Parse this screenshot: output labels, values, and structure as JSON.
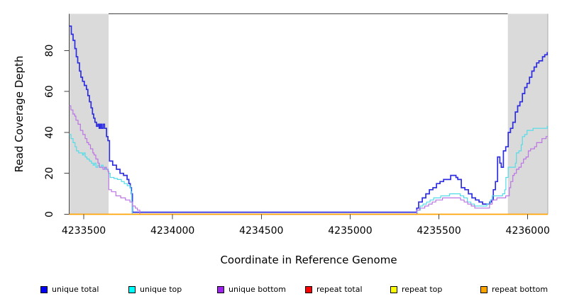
{
  "chart_data": {
    "type": "line",
    "subtype": "step",
    "title": "",
    "xlabel": "Coordinate in Reference Genome",
    "ylabel": "Read Coverage Depth",
    "xlim": [
      4233418,
      4236113
    ],
    "ylim": [
      0,
      98
    ],
    "x_ticks": [
      4233500,
      4234000,
      4234500,
      4235000,
      4235500,
      4236000
    ],
    "y_ticks": [
      0,
      20,
      40,
      60,
      80
    ],
    "grid": false,
    "legend_position": "bottom",
    "background": "#ffffff",
    "frame_color": "#434343",
    "shaded_region_color": "#dadada",
    "shaded_regions": [
      {
        "name": "left-flank",
        "from": 4233418,
        "to": 4233640
      },
      {
        "name": "right-flank",
        "from": 4235888,
        "to": 4236113
      }
    ],
    "series": [
      {
        "name": "unique total",
        "legend_color": "#0000f2",
        "line_color": "#2e2ee0",
        "line_width": 1.7,
        "points": [
          [
            4233418,
            92
          ],
          [
            4233430,
            88
          ],
          [
            4233440,
            85
          ],
          [
            4233450,
            81
          ],
          [
            4233458,
            77
          ],
          [
            4233466,
            74
          ],
          [
            4233476,
            70
          ],
          [
            4233484,
            67
          ],
          [
            4233493,
            65
          ],
          [
            4233503,
            63
          ],
          [
            4233515,
            61
          ],
          [
            4233523,
            58
          ],
          [
            4233532,
            55
          ],
          [
            4233541,
            52
          ],
          [
            4233549,
            49
          ],
          [
            4233556,
            47
          ],
          [
            4233563,
            45
          ],
          [
            4233572,
            43
          ],
          [
            4233580,
            44
          ],
          [
            4233587,
            42
          ],
          [
            4233594,
            44
          ],
          [
            4233601,
            42
          ],
          [
            4233609,
            44
          ],
          [
            4233617,
            42
          ],
          [
            4233628,
            38
          ],
          [
            4233636,
            36
          ],
          [
            4233645,
            26
          ],
          [
            4233663,
            24
          ],
          [
            4233684,
            22
          ],
          [
            4233704,
            20
          ],
          [
            4233724,
            19
          ],
          [
            4233744,
            17
          ],
          [
            4233754,
            15
          ],
          [
            4233762,
            13
          ],
          [
            4233769,
            10
          ],
          [
            4233774,
            1
          ],
          [
            4235375,
            3
          ],
          [
            4235386,
            6
          ],
          [
            4235406,
            8
          ],
          [
            4235426,
            10
          ],
          [
            4235446,
            12
          ],
          [
            4235466,
            13
          ],
          [
            4235486,
            15
          ],
          [
            4235506,
            16
          ],
          [
            4235526,
            17
          ],
          [
            4235546,
            17
          ],
          [
            4235566,
            19
          ],
          [
            4235596,
            18
          ],
          [
            4235606,
            17
          ],
          [
            4235626,
            13
          ],
          [
            4235646,
            12
          ],
          [
            4235666,
            10
          ],
          [
            4235686,
            8
          ],
          [
            4235706,
            7
          ],
          [
            4235726,
            6
          ],
          [
            4235746,
            5
          ],
          [
            4235786,
            6
          ],
          [
            4235796,
            7
          ],
          [
            4235806,
            12
          ],
          [
            4235818,
            16
          ],
          [
            4235830,
            28
          ],
          [
            4235843,
            25
          ],
          [
            4235851,
            23
          ],
          [
            4235863,
            31
          ],
          [
            4235876,
            33
          ],
          [
            4235890,
            40
          ],
          [
            4235903,
            42
          ],
          [
            4235916,
            45
          ],
          [
            4235930,
            50
          ],
          [
            4235943,
            53
          ],
          [
            4235956,
            55
          ],
          [
            4235970,
            59
          ],
          [
            4235983,
            62
          ],
          [
            4235996,
            64
          ],
          [
            4236010,
            67
          ],
          [
            4236023,
            70
          ],
          [
            4236036,
            72
          ],
          [
            4236050,
            74
          ],
          [
            4236063,
            75
          ],
          [
            4236083,
            77
          ],
          [
            4236096,
            78
          ],
          [
            4236110,
            79
          ]
        ]
      },
      {
        "name": "unique top",
        "legend_color": "#00ffff",
        "line_color": "#53dce8",
        "line_width": 1.2,
        "points": [
          [
            4233418,
            39
          ],
          [
            4233428,
            37
          ],
          [
            4233440,
            35
          ],
          [
            4233451,
            33
          ],
          [
            4233459,
            31
          ],
          [
            4233471,
            30
          ],
          [
            4233493,
            29
          ],
          [
            4233500,
            30
          ],
          [
            4233508,
            28
          ],
          [
            4233518,
            27
          ],
          [
            4233532,
            26
          ],
          [
            4233543,
            25
          ],
          [
            4233553,
            24
          ],
          [
            4233561,
            25
          ],
          [
            4233569,
            23
          ],
          [
            4233579,
            24
          ],
          [
            4233589,
            23
          ],
          [
            4233599,
            24
          ],
          [
            4233609,
            23
          ],
          [
            4233622,
            22
          ],
          [
            4233639,
            20
          ],
          [
            4233649,
            18
          ],
          [
            4233670,
            17.5
          ],
          [
            4233690,
            17
          ],
          [
            4233712,
            16
          ],
          [
            4233728,
            15
          ],
          [
            4233745,
            14
          ],
          [
            4233760,
            13
          ],
          [
            4233766,
            11
          ],
          [
            4233770,
            6
          ],
          [
            4233773,
            0
          ],
          [
            4235378,
            2
          ],
          [
            4235395,
            4
          ],
          [
            4235410,
            5
          ],
          [
            4235430,
            6
          ],
          [
            4235450,
            7
          ],
          [
            4235470,
            8
          ],
          [
            4235510,
            9
          ],
          [
            4235560,
            10
          ],
          [
            4235620,
            9
          ],
          [
            4235640,
            8
          ],
          [
            4235660,
            6
          ],
          [
            4235680,
            5
          ],
          [
            4235700,
            4
          ],
          [
            4235770,
            5
          ],
          [
            4235790,
            7
          ],
          [
            4235800,
            9
          ],
          [
            4235858,
            10
          ],
          [
            4235871,
            12
          ],
          [
            4235877,
            18
          ],
          [
            4235890,
            23
          ],
          [
            4235930,
            25
          ],
          [
            4235936,
            30
          ],
          [
            4235950,
            31
          ],
          [
            4235963,
            34
          ],
          [
            4235970,
            38
          ],
          [
            4235983,
            39
          ],
          [
            4235996,
            41
          ],
          [
            4236030,
            42
          ],
          [
            4236110,
            43
          ]
        ]
      },
      {
        "name": "unique bottom",
        "legend_color": "#a020f0",
        "line_color": "#bb74e4",
        "line_width": 1.2,
        "points": [
          [
            4233418,
            53
          ],
          [
            4233427,
            51
          ],
          [
            4233439,
            49
          ],
          [
            4233449,
            48
          ],
          [
            4233456,
            46
          ],
          [
            4233468,
            44
          ],
          [
            4233481,
            41
          ],
          [
            4233495,
            39
          ],
          [
            4233508,
            37
          ],
          [
            4233518,
            35
          ],
          [
            4233528,
            34
          ],
          [
            4233538,
            32
          ],
          [
            4233551,
            30
          ],
          [
            4233558,
            29
          ],
          [
            4233568,
            27
          ],
          [
            4233580,
            25
          ],
          [
            4233588,
            23
          ],
          [
            4233599,
            23
          ],
          [
            4233608,
            22
          ],
          [
            4233618,
            23
          ],
          [
            4233628,
            22
          ],
          [
            4233636,
            21
          ],
          [
            4233641,
            12
          ],
          [
            4233656,
            11
          ],
          [
            4233681,
            9
          ],
          [
            4233708,
            8
          ],
          [
            4233735,
            7
          ],
          [
            4233760,
            6
          ],
          [
            4233775,
            4
          ],
          [
            4233790,
            3
          ],
          [
            4233802,
            2
          ],
          [
            4233816,
            0
          ],
          [
            4235375,
            2
          ],
          [
            4235392,
            3
          ],
          [
            4235420,
            4
          ],
          [
            4235442,
            5
          ],
          [
            4235462,
            6
          ],
          [
            4235482,
            7
          ],
          [
            4235520,
            8
          ],
          [
            4235600,
            8
          ],
          [
            4235622,
            7
          ],
          [
            4235642,
            6
          ],
          [
            4235662,
            5
          ],
          [
            4235682,
            4
          ],
          [
            4235702,
            3
          ],
          [
            4235785,
            5
          ],
          [
            4235800,
            7
          ],
          [
            4235826,
            8
          ],
          [
            4235876,
            9
          ],
          [
            4235896,
            13
          ],
          [
            4235904,
            16
          ],
          [
            4235916,
            19
          ],
          [
            4235924,
            20
          ],
          [
            4235936,
            22
          ],
          [
            4235950,
            23
          ],
          [
            4235963,
            25
          ],
          [
            4235976,
            27
          ],
          [
            4235990,
            28
          ],
          [
            4236003,
            31
          ],
          [
            4236016,
            32
          ],
          [
            4236038,
            33
          ],
          [
            4236050,
            35
          ],
          [
            4236080,
            37
          ],
          [
            4236103,
            38
          ]
        ]
      },
      {
        "name": "repeat total",
        "legend_color": "#ff0000",
        "line_color": "#ff0000",
        "line_width": 1.2,
        "points": [
          [
            4233418,
            0
          ],
          [
            4236113,
            0
          ]
        ]
      },
      {
        "name": "repeat top",
        "legend_color": "#ffff00",
        "line_color": "#ffff00",
        "line_width": 1.2,
        "points": [
          [
            4233418,
            0
          ],
          [
            4236113,
            0
          ]
        ]
      },
      {
        "name": "repeat bottom",
        "legend_color": "#ffa500",
        "line_color": "#ffa500",
        "line_width": 1.5,
        "points": [
          [
            4233418,
            0
          ],
          [
            4236113,
            0
          ]
        ]
      }
    ]
  }
}
